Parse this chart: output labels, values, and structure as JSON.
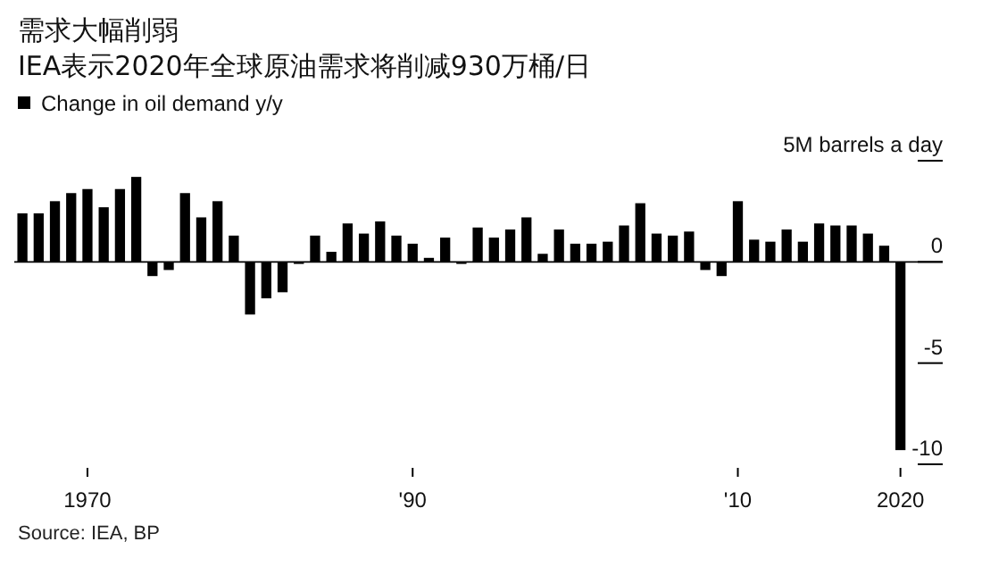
{
  "chart_data": {
    "type": "bar",
    "title": "需求大幅削弱",
    "subtitle": "IEA表示2020年全球原油需求将削减930万桶/日",
    "x": [
      1966,
      1967,
      1968,
      1969,
      1970,
      1971,
      1972,
      1973,
      1974,
      1975,
      1976,
      1977,
      1978,
      1979,
      1980,
      1981,
      1982,
      1983,
      1984,
      1985,
      1986,
      1987,
      1988,
      1989,
      1990,
      1991,
      1992,
      1993,
      1994,
      1995,
      1996,
      1997,
      1998,
      1999,
      2000,
      2001,
      2002,
      2003,
      2004,
      2005,
      2006,
      2007,
      2008,
      2009,
      2010,
      2011,
      2012,
      2013,
      2014,
      2015,
      2016,
      2017,
      2018,
      2019,
      2020
    ],
    "series": [
      {
        "name": "Change in oil demand y/y",
        "color": "#000000",
        "values": [
          2.4,
          2.4,
          3.0,
          3.4,
          3.6,
          2.7,
          3.6,
          4.2,
          -0.7,
          -0.4,
          3.4,
          2.2,
          3.0,
          1.3,
          -2.6,
          -1.8,
          -1.5,
          -0.1,
          1.3,
          0.5,
          1.9,
          1.4,
          2.0,
          1.3,
          0.9,
          0.2,
          1.2,
          -0.1,
          1.7,
          1.2,
          1.6,
          2.2,
          0.4,
          1.6,
          0.9,
          0.9,
          1.0,
          1.8,
          2.9,
          1.4,
          1.3,
          1.5,
          -0.4,
          -0.7,
          3.0,
          1.1,
          1.0,
          1.6,
          1.0,
          1.9,
          1.8,
          1.8,
          1.4,
          0.8,
          -9.3
        ]
      }
    ],
    "xlim": [
      1965.5,
      2022.6
    ],
    "xticks": [
      1970,
      {
        "value": 1990,
        "label": "'90"
      },
      {
        "value": 2010,
        "label": "'10"
      },
      2020
    ],
    "ylim": [
      -10,
      5
    ],
    "yticks": [
      {
        "value": 5,
        "label": "5M barrels a day"
      },
      0,
      -5,
      -10
    ],
    "legend": "top left",
    "grid": "y",
    "annotations": [
      "Source: IEA, BP"
    ]
  }
}
